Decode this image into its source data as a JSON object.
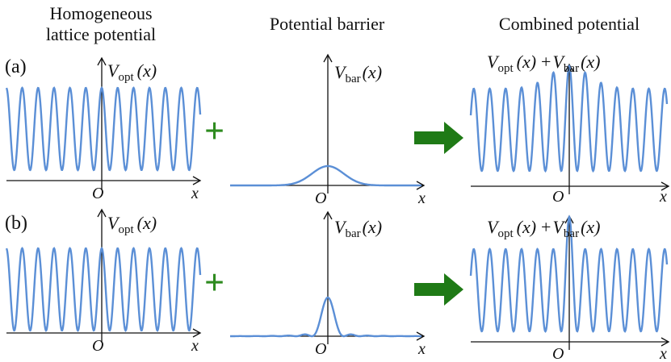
{
  "headers": {
    "left_line1": "Homogeneous",
    "left_line2": "lattice potential",
    "middle": "Potential barrier",
    "right": "Combined potential"
  },
  "rows": [
    {
      "label": "(a)",
      "barrier": "broad gaussian"
    },
    {
      "label": "(b)",
      "barrier": "narrow oscillating"
    }
  ],
  "labels": {
    "v_opt": "V",
    "v_opt_sub": "opt",
    "v_bar": "V",
    "v_bar_sub": "bar",
    "arg": "(x)",
    "plus": "+",
    "origin": "O",
    "x": "x"
  },
  "colors": {
    "curve": "#5b8fd6",
    "plus_sign": "#2e8b1f",
    "arrow": "#1f7a16",
    "axis": "#111111"
  }
}
